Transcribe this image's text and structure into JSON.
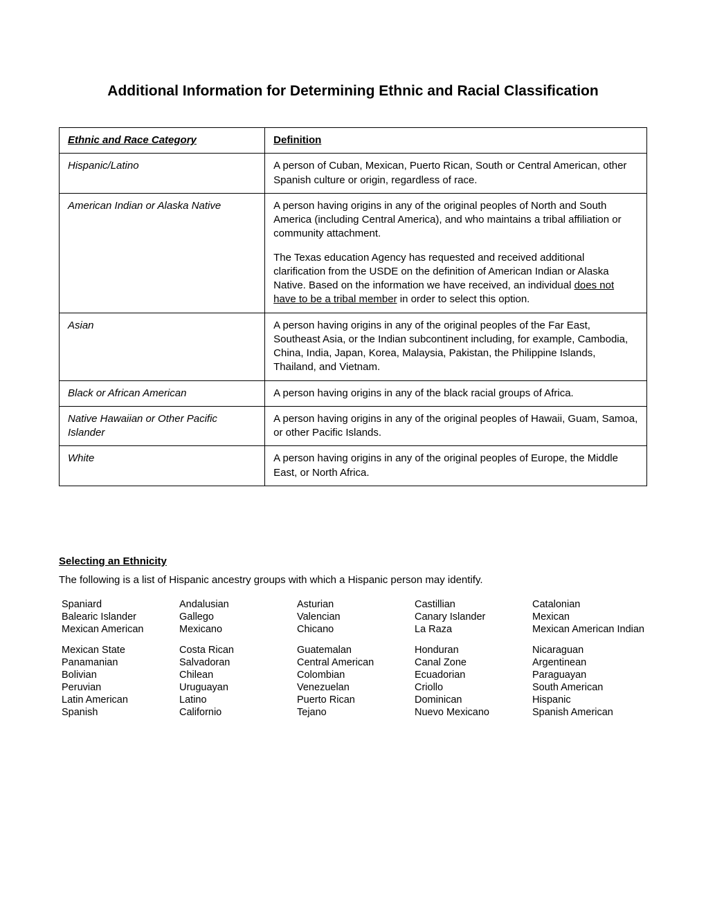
{
  "title": "Additional Information for Determining Ethnic and Racial Classification",
  "headers": {
    "cat": "Ethnic and Race Category",
    "def": "Definition"
  },
  "rows": [
    {
      "cat": "Hispanic/Latino",
      "def": "A person of Cuban, Mexican, Puerto Rican, South or Central American, other Spanish culture or origin, regardless of race."
    },
    {
      "cat": "American Indian or Alaska Native",
      "def_p1": "A person having origins in any of the original peoples of North and South America (including Central America), and who maintains a tribal affiliation or community attachment.",
      "def_p2_a": "The Texas education Agency has requested and received additional clarification from the USDE on the definition of American Indian or Alaska Native.  Based on the information we have received, an individual ",
      "def_p2_u": "does not have to be a tribal member",
      "def_p2_b": " in order to select this option."
    },
    {
      "cat": "Asian",
      "def": "A person having origins in any of the original peoples of the Far East, Southeast Asia, or the Indian subcontinent including, for example, Cambodia, China, India, Japan, Korea, Malaysia, Pakistan, the Philippine Islands, Thailand, and Vietnam."
    },
    {
      "cat": "Black or African American",
      "def": "A person having origins in any of the black racial groups of Africa."
    },
    {
      "cat": "Native Hawaiian or Other Pacific Islander",
      "def": "A person having origins in any of the original peoples of Hawaii, Guam, Samoa, or other Pacific Islands."
    },
    {
      "cat": "White",
      "def": "A person having origins in any of the original peoples of Europe, the Middle East, or North Africa."
    }
  ],
  "section": {
    "heading": "Selecting an Ethnicity",
    "intro": "The following is a list of Hispanic ancestry groups with which a Hispanic person may identify."
  },
  "ancestry": [
    [
      "Spaniard",
      "Andalusian",
      "Asturian",
      "Castillian",
      "Catalonian"
    ],
    [
      "Balearic Islander",
      "Gallego",
      "Valencian",
      "Canary Islander",
      "Mexican"
    ],
    [
      "Mexican American",
      "Mexicano",
      "Chicano",
      "La Raza",
      "Mexican American Indian"
    ],
    [
      "Mexican State",
      "Costa Rican",
      "Guatemalan",
      "Honduran",
      "Nicaraguan"
    ],
    [
      "Panamanian",
      "Salvadoran",
      "Central American",
      "Canal Zone",
      "Argentinean"
    ],
    [
      "Bolivian",
      "Chilean",
      "Colombian",
      "Ecuadorian",
      "Paraguayan"
    ],
    [
      "Peruvian",
      "Uruguayan",
      "Venezuelan",
      "Criollo",
      "South American"
    ],
    [
      "Latin American",
      "Latino",
      "Puerto Rican",
      "Dominican",
      "Hispanic"
    ],
    [
      "Spanish",
      "Californio",
      "Tejano",
      "Nuevo Mexicano",
      "Spanish American"
    ]
  ]
}
